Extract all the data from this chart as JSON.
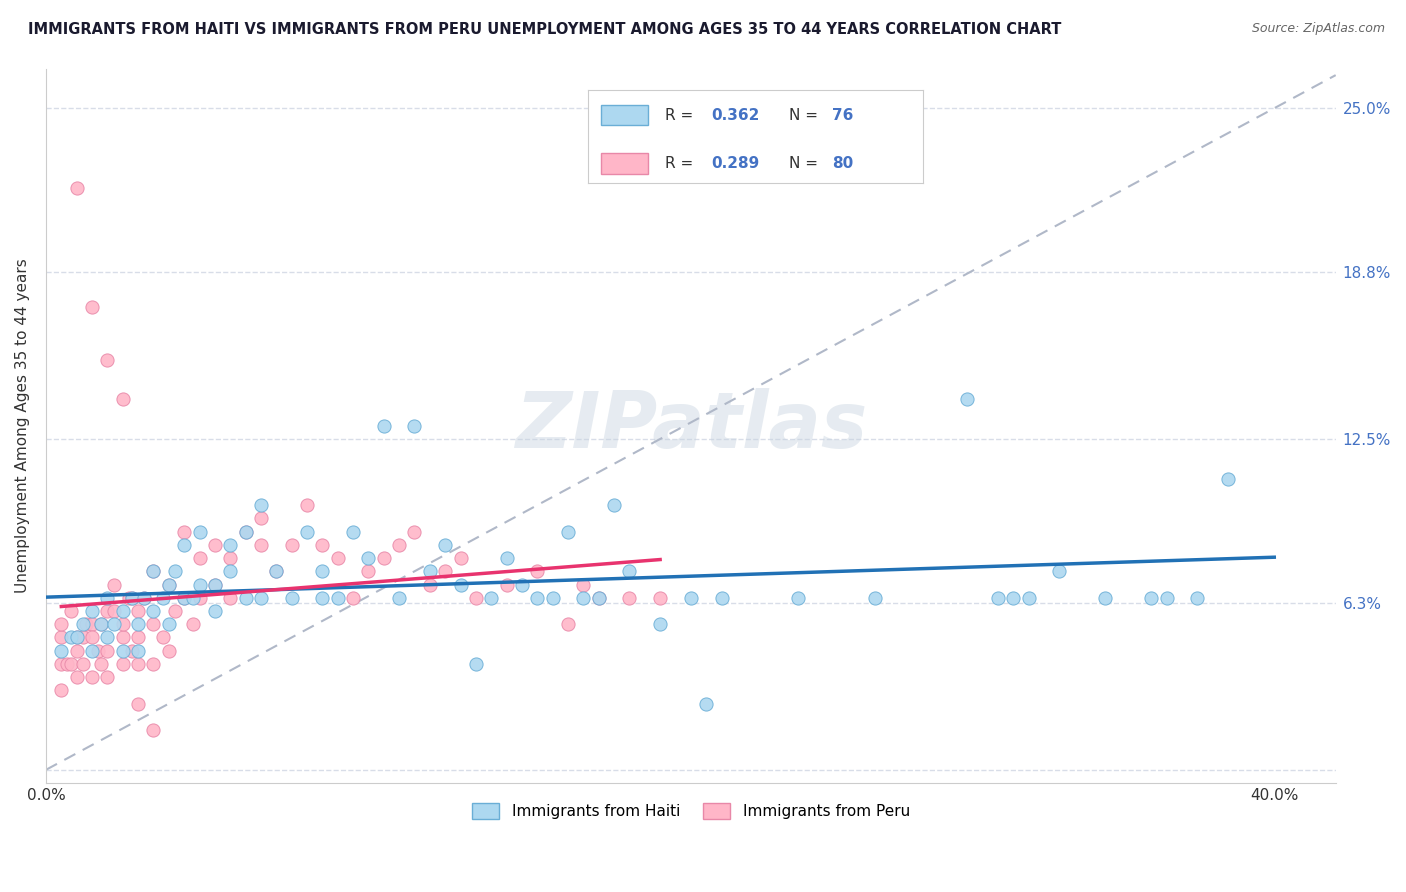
{
  "title": "IMMIGRANTS FROM HAITI VS IMMIGRANTS FROM PERU UNEMPLOYMENT AMONG AGES 35 TO 44 YEARS CORRELATION CHART",
  "source": "Source: ZipAtlas.com",
  "ylabel": "Unemployment Among Ages 35 to 44 years",
  "xlim": [
    0.0,
    0.42
  ],
  "ylim": [
    -0.005,
    0.265
  ],
  "haiti_color": "#ADD8F0",
  "peru_color": "#FFB6C8",
  "haiti_edge_color": "#6aaed6",
  "peru_edge_color": "#e888a8",
  "haiti_line_color": "#2171b5",
  "peru_line_color": "#e8336e",
  "trend_line_color": "#b0b8c8",
  "haiti_R": 0.362,
  "haiti_N": 76,
  "peru_R": 0.289,
  "peru_N": 80,
  "legend_text_color": "#4472c4",
  "legend_label_color": "#333333",
  "haiti_scatter_x": [
    0.005,
    0.008,
    0.01,
    0.012,
    0.015,
    0.015,
    0.018,
    0.02,
    0.02,
    0.022,
    0.025,
    0.025,
    0.028,
    0.03,
    0.03,
    0.032,
    0.035,
    0.035,
    0.038,
    0.04,
    0.04,
    0.042,
    0.045,
    0.045,
    0.048,
    0.05,
    0.05,
    0.055,
    0.055,
    0.06,
    0.06,
    0.065,
    0.065,
    0.07,
    0.07,
    0.075,
    0.08,
    0.085,
    0.09,
    0.09,
    0.095,
    0.1,
    0.105,
    0.11,
    0.115,
    0.12,
    0.125,
    0.13,
    0.135,
    0.14,
    0.145,
    0.15,
    0.155,
    0.16,
    0.165,
    0.17,
    0.175,
    0.18,
    0.185,
    0.19,
    0.2,
    0.21,
    0.215,
    0.22,
    0.245,
    0.27,
    0.3,
    0.31,
    0.315,
    0.32,
    0.33,
    0.345,
    0.36,
    0.365,
    0.375,
    0.385
  ],
  "haiti_scatter_y": [
    0.045,
    0.05,
    0.05,
    0.055,
    0.045,
    0.06,
    0.055,
    0.05,
    0.065,
    0.055,
    0.06,
    0.045,
    0.065,
    0.055,
    0.045,
    0.065,
    0.06,
    0.075,
    0.065,
    0.055,
    0.07,
    0.075,
    0.065,
    0.085,
    0.065,
    0.07,
    0.09,
    0.06,
    0.07,
    0.075,
    0.085,
    0.065,
    0.09,
    0.065,
    0.1,
    0.075,
    0.065,
    0.09,
    0.065,
    0.075,
    0.065,
    0.09,
    0.08,
    0.13,
    0.065,
    0.13,
    0.075,
    0.085,
    0.07,
    0.04,
    0.065,
    0.08,
    0.07,
    0.065,
    0.065,
    0.09,
    0.065,
    0.065,
    0.1,
    0.075,
    0.055,
    0.065,
    0.025,
    0.065,
    0.065,
    0.065,
    0.14,
    0.065,
    0.065,
    0.065,
    0.075,
    0.065,
    0.065,
    0.065,
    0.065,
    0.11
  ],
  "peru_scatter_x": [
    0.005,
    0.005,
    0.005,
    0.005,
    0.007,
    0.008,
    0.008,
    0.01,
    0.01,
    0.01,
    0.012,
    0.012,
    0.013,
    0.015,
    0.015,
    0.015,
    0.017,
    0.018,
    0.018,
    0.02,
    0.02,
    0.02,
    0.022,
    0.022,
    0.025,
    0.025,
    0.025,
    0.027,
    0.028,
    0.028,
    0.03,
    0.03,
    0.03,
    0.032,
    0.035,
    0.035,
    0.035,
    0.038,
    0.04,
    0.04,
    0.042,
    0.045,
    0.045,
    0.048,
    0.05,
    0.05,
    0.055,
    0.055,
    0.06,
    0.06,
    0.065,
    0.07,
    0.07,
    0.075,
    0.08,
    0.085,
    0.09,
    0.095,
    0.1,
    0.105,
    0.11,
    0.115,
    0.12,
    0.125,
    0.13,
    0.135,
    0.14,
    0.15,
    0.16,
    0.17,
    0.175,
    0.18,
    0.19,
    0.2,
    0.01,
    0.015,
    0.02,
    0.025,
    0.03,
    0.035
  ],
  "peru_scatter_y": [
    0.04,
    0.05,
    0.03,
    0.055,
    0.04,
    0.04,
    0.06,
    0.045,
    0.05,
    0.035,
    0.05,
    0.04,
    0.055,
    0.035,
    0.055,
    0.05,
    0.045,
    0.055,
    0.04,
    0.035,
    0.06,
    0.045,
    0.06,
    0.07,
    0.05,
    0.055,
    0.04,
    0.065,
    0.045,
    0.065,
    0.05,
    0.06,
    0.04,
    0.065,
    0.055,
    0.04,
    0.075,
    0.05,
    0.07,
    0.045,
    0.06,
    0.065,
    0.09,
    0.055,
    0.08,
    0.065,
    0.07,
    0.085,
    0.065,
    0.08,
    0.09,
    0.085,
    0.095,
    0.075,
    0.085,
    0.1,
    0.085,
    0.08,
    0.065,
    0.075,
    0.08,
    0.085,
    0.09,
    0.07,
    0.075,
    0.08,
    0.065,
    0.07,
    0.075,
    0.055,
    0.07,
    0.065,
    0.065,
    0.065,
    0.22,
    0.175,
    0.155,
    0.14,
    0.025,
    0.015
  ],
  "background_color": "#ffffff",
  "grid_color": "#d8dde8",
  "watermark_text": "ZIPatlas",
  "watermark_color": "#c8d4e0",
  "watermark_alpha": 0.45,
  "ytick_positions": [
    0.0,
    0.063,
    0.125,
    0.188,
    0.25
  ],
  "ytick_labels": [
    "",
    "6.3%",
    "12.5%",
    "18.8%",
    "25.0%"
  ]
}
